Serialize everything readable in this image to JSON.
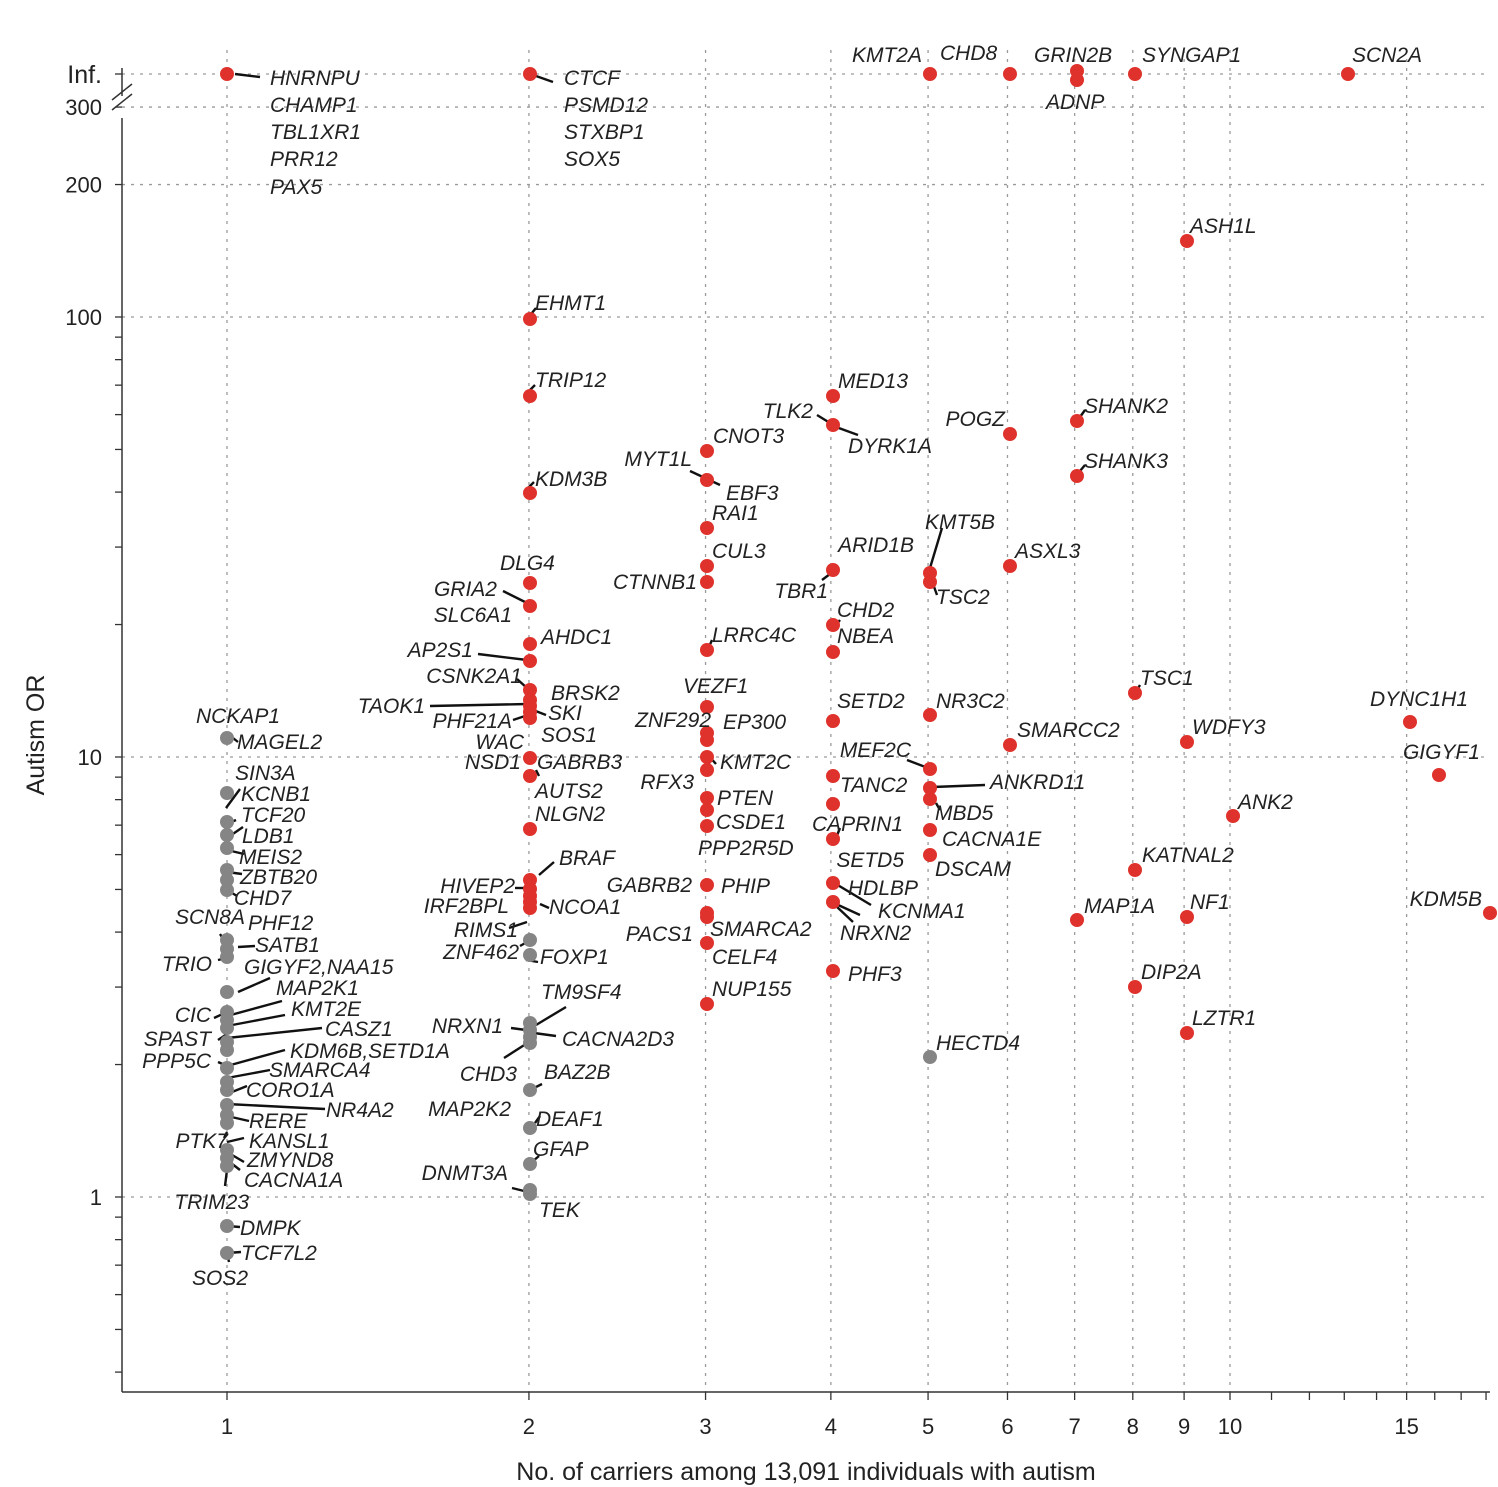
{
  "chart_data": {
    "type": "scatter",
    "title": "",
    "xlabel": "No. of carriers among 13,091 individuals with autism",
    "ylabel": "Autism OR",
    "x_scale": "log",
    "y_scale": "log",
    "xlim": [
      0.7,
      20
    ],
    "ylim": [
      0.4,
      "Inf."
    ],
    "x_ticks": [
      1,
      2,
      3,
      4,
      5,
      6,
      7,
      8,
      9,
      10,
      15
    ],
    "y_ticks": [
      1,
      10,
      100,
      200,
      300,
      "Inf."
    ],
    "colors": {
      "significant": "#e0322c",
      "not_significant": "#858585",
      "grid": "#9a9a9a"
    },
    "labels": [
      {
        "text": "HNRNPU",
        "carriers": 1,
        "or": "Inf."
      },
      {
        "text": "CHAMP1",
        "carriers": 1,
        "or": "Inf."
      },
      {
        "text": "TBL1XR1",
        "carriers": 1,
        "or": "Inf."
      },
      {
        "text": "PRR12",
        "carriers": 1,
        "or": "Inf."
      },
      {
        "text": "PAX5",
        "carriers": 1,
        "or": "Inf."
      },
      {
        "text": "CTCF",
        "carriers": 2,
        "or": "Inf."
      },
      {
        "text": "PSMD12",
        "carriers": 2,
        "or": "Inf."
      },
      {
        "text": "STXBP1",
        "carriers": 2,
        "or": "Inf."
      },
      {
        "text": "SOX5",
        "carriers": 2,
        "or": "Inf."
      },
      {
        "text": "KMT2A",
        "carriers": 5,
        "or": "Inf."
      },
      {
        "text": "CHD8",
        "carriers": 6,
        "or": "Inf."
      },
      {
        "text": "GRIN2B",
        "carriers": 7,
        "or": "Inf."
      },
      {
        "text": "ADNP",
        "carriers": 7,
        "or": "Inf."
      },
      {
        "text": "SYNGAP1",
        "carriers": 8,
        "or": "Inf."
      },
      {
        "text": "SCN2A",
        "carriers": 13,
        "or": "Inf."
      },
      {
        "text": "ASH1L",
        "carriers": 9,
        "or": 150
      },
      {
        "text": "EHMT1",
        "carriers": 2,
        "or": 100
      },
      {
        "text": "TRIP12",
        "carriers": 2,
        "or": 65
      },
      {
        "text": "KDM3B",
        "carriers": 2,
        "or": 40
      },
      {
        "text": "MED13",
        "carriers": 4,
        "or": 63
      },
      {
        "text": "TLK2",
        "carriers": 4,
        "or": 55
      },
      {
        "text": "DYRK1A",
        "carriers": 4,
        "or": 55
      },
      {
        "text": "CNOT3",
        "carriers": 3,
        "or": 48
      },
      {
        "text": "MYT1L",
        "carriers": 3,
        "or": 42
      },
      {
        "text": "EBF3",
        "carriers": 3,
        "or": 42
      },
      {
        "text": "RAI1",
        "carriers": 3,
        "or": 33
      },
      {
        "text": "POGZ",
        "carriers": 6,
        "or": 52
      },
      {
        "text": "SHANK2",
        "carriers": 7,
        "or": 56
      },
      {
        "text": "SHANK3",
        "carriers": 7,
        "or": 42
      },
      {
        "text": "KMT5B",
        "carriers": 5,
        "or": 24
      },
      {
        "text": "ASXL3",
        "carriers": 6,
        "or": 27
      },
      {
        "text": "ARID1B",
        "carriers": 4,
        "or": 26
      },
      {
        "text": "TSC2",
        "carriers": 5,
        "or": 24
      },
      {
        "text": "TBR1",
        "carriers": 4,
        "or": 26
      },
      {
        "text": "CUL3",
        "carriers": 3,
        "or": 27
      },
      {
        "text": "CTNNB1",
        "carriers": 3,
        "or": 24
      },
      {
        "text": "DLG4",
        "carriers": 2,
        "or": 24
      },
      {
        "text": "GRIA2",
        "carriers": 2,
        "or": 21
      },
      {
        "text": "SLC6A1",
        "carriers": 2,
        "or": 21
      },
      {
        "text": "AHDC1",
        "carriers": 2,
        "or": 18
      },
      {
        "text": "AP2S1",
        "carriers": 2,
        "or": 16.5
      },
      {
        "text": "CSNK2A1",
        "carriers": 2,
        "or": 14
      },
      {
        "text": "CHD2",
        "carriers": 4,
        "or": 19.5
      },
      {
        "text": "NBEA",
        "carriers": 4,
        "or": 17
      },
      {
        "text": "LRRC4C",
        "carriers": 3,
        "or": 17
      },
      {
        "text": "TSC1",
        "carriers": 8,
        "or": 14
      },
      {
        "text": "DYNC1H1",
        "carriers": 15,
        "or": 12
      },
      {
        "text": "WDFY3",
        "carriers": 9,
        "or": 10.8
      },
      {
        "text": "GIGYF1",
        "carriers": 16,
        "or": 9
      },
      {
        "text": "BRSK2",
        "carriers": 2,
        "or": 13.5
      },
      {
        "text": "TAOK1",
        "carriers": 2,
        "or": 12.8
      },
      {
        "text": "SKI",
        "carriers": 2,
        "or": 12.5
      },
      {
        "text": "PHF21A",
        "carriers": 2,
        "or": 12
      },
      {
        "text": "SOS1",
        "carriers": 2,
        "or": 12
      },
      {
        "text": "WAC",
        "carriers": 2,
        "or": 11.5
      },
      {
        "text": "NSD1",
        "carriers": 2,
        "or": 10
      },
      {
        "text": "GABRB3",
        "carriers": 2,
        "or": 10
      },
      {
        "text": "AUTS2",
        "carriers": 2,
        "or": 9
      },
      {
        "text": "NLGN2",
        "carriers": 2,
        "or": 7
      },
      {
        "text": "VEZF1",
        "carriers": 3,
        "or": 12.5
      },
      {
        "text": "ZNF292",
        "carriers": 3,
        "or": 11.2
      },
      {
        "text": "EP300",
        "carriers": 3,
        "or": 11
      },
      {
        "text": "KMT2C",
        "carriers": 3,
        "or": 9.5
      },
      {
        "text": "RFX3",
        "carriers": 3,
        "or": 9.3
      },
      {
        "text": "PTEN",
        "carriers": 3,
        "or": 7.9
      },
      {
        "text": "CSDE1",
        "carriers": 3,
        "or": 7.5
      },
      {
        "text": "PPP2R5D",
        "carriers": 3,
        "or": 7
      },
      {
        "text": "SETD2",
        "carriers": 4,
        "or": 12
      },
      {
        "text": "NR3C2",
        "carriers": 5,
        "or": 12.3
      },
      {
        "text": "SMARCC2",
        "carriers": 6,
        "or": 10.6
      },
      {
        "text": "MEF2C",
        "carriers": 5,
        "or": 9.5
      },
      {
        "text": "TANC2",
        "carriers": 4,
        "or": 9
      },
      {
        "text": "ANKRD11",
        "carriers": 5,
        "or": 8.5
      },
      {
        "text": "MBD5",
        "carriers": 5,
        "or": 8
      },
      {
        "text": "CAPRIN1",
        "carriers": 4,
        "or": 7.6
      },
      {
        "text": "CACNA1E",
        "carriers": 5,
        "or": 6.8
      },
      {
        "text": "DSCAM",
        "carriers": 5,
        "or": 5.9
      },
      {
        "text": "SETD5",
        "carriers": 4,
        "or": 6.6
      },
      {
        "text": "ANK2",
        "carriers": 10,
        "or": 7.3
      },
      {
        "text": "KATNAL2",
        "carriers": 8,
        "or": 5.4
      },
      {
        "text": "MAP1A",
        "carriers": 7,
        "or": 4.3
      },
      {
        "text": "NF1",
        "carriers": 9,
        "or": 4.4
      },
      {
        "text": "KDM5B",
        "carriers": 19,
        "or": 4.5
      },
      {
        "text": "DIP2A",
        "carriers": 8,
        "or": 3
      },
      {
        "text": "LZTR1",
        "carriers": 9,
        "or": 2.4
      },
      {
        "text": "HECTD4",
        "carriers": 5,
        "or": 2.1
      },
      {
        "text": "BRAF",
        "carriers": 2,
        "or": 5.2
      },
      {
        "text": "HIVEP2",
        "carriers": 2,
        "or": 5
      },
      {
        "text": "IRF2BPL",
        "carriers": 2,
        "or": 4.8
      },
      {
        "text": "NCOA1",
        "carriers": 2,
        "or": 4.6
      },
      {
        "text": "RIMS1",
        "carriers": 2,
        "or": 3.9
      },
      {
        "text": "ZNF462",
        "carriers": 2,
        "or": 3.9
      },
      {
        "text": "FOXP1",
        "carriers": 2,
        "or": 3.6
      },
      {
        "text": "GABRB2",
        "carriers": 3,
        "or": 5
      },
      {
        "text": "PHIP",
        "carriers": 3,
        "or": 5
      },
      {
        "text": "PACS1",
        "carriers": 3,
        "or": 4.3
      },
      {
        "text": "SMARCA2",
        "carriers": 3,
        "or": 4.3
      },
      {
        "text": "CELF4",
        "carriers": 3,
        "or": 3.8
      },
      {
        "text": "NUP155",
        "carriers": 3,
        "or": 2.8
      },
      {
        "text": "HDLBP",
        "carriers": 4,
        "or": 5.1
      },
      {
        "text": "KCNMA1",
        "carriers": 4,
        "or": 4.7
      },
      {
        "text": "NRXN2",
        "carriers": 4,
        "or": 4.7
      },
      {
        "text": "PHF3",
        "carriers": 4,
        "or": 3.3
      },
      {
        "text": "TM9SF4",
        "carriers": 2,
        "or": 2.5
      },
      {
        "text": "NRXN1",
        "carriers": 2,
        "or": 2.4
      },
      {
        "text": "CACNA2D3",
        "carriers": 2,
        "or": 2.3
      },
      {
        "text": "CHD3",
        "carriers": 2,
        "or": 2.2
      },
      {
        "text": "BAZ2B",
        "carriers": 2,
        "or": 1.7
      },
      {
        "text": "MAP2K2",
        "carriers": 2,
        "or": 1.7
      },
      {
        "text": "DEAF1",
        "carriers": 2,
        "or": 1.4
      },
      {
        "text": "GFAP",
        "carriers": 2,
        "or": 1.2
      },
      {
        "text": "DNMT3A",
        "carriers": 2,
        "or": 1.05
      },
      {
        "text": "TEK",
        "carriers": 2,
        "or": 1.0
      },
      {
        "text": "NCKAP1",
        "carriers": 1,
        "or": 11
      },
      {
        "text": "MAGEL2",
        "carriers": 1,
        "or": 11
      },
      {
        "text": "SIN3A",
        "carriers": 1,
        "or": 8.2
      },
      {
        "text": "KCNB1",
        "carriers": 1,
        "or": 8.2
      },
      {
        "text": "TCF20",
        "carriers": 1,
        "or": 7
      },
      {
        "text": "LDB1",
        "carriers": 1,
        "or": 6.6
      },
      {
        "text": "MEIS2",
        "carriers": 1,
        "or": 6.2
      },
      {
        "text": "ZBTB20",
        "carriers": 1,
        "or": 5.6
      },
      {
        "text": "CHD7",
        "carriers": 1,
        "or": 5
      },
      {
        "text": "SCN8A",
        "carriers": 1,
        "or": 3.9
      },
      {
        "text": "PHF12",
        "carriers": 1,
        "or": 3.9
      },
      {
        "text": "SATB1",
        "carriers": 1,
        "or": 3.7
      },
      {
        "text": "TRIO",
        "carriers": 1,
        "or": 3.6
      },
      {
        "text": "GIGYF2,NAA15",
        "carriers": 1,
        "or": 2.9
      },
      {
        "text": "MAP2K1",
        "carriers": 1,
        "or": 2.6
      },
      {
        "text": "KMT2E",
        "carriers": 1,
        "or": 2.5
      },
      {
        "text": "CIC",
        "carriers": 1,
        "or": 2.6
      },
      {
        "text": "CASZ1",
        "carriers": 1,
        "or": 2.3
      },
      {
        "text": "SPAST",
        "carriers": 1,
        "or": 2.2
      },
      {
        "text": "KDM6B,SETD1A",
        "carriers": 1,
        "or": 2.2
      },
      {
        "text": "PPP5C",
        "carriers": 1,
        "or": 2
      },
      {
        "text": "SMARCA4",
        "carriers": 1,
        "or": 1.9
      },
      {
        "text": "CORO1A",
        "carriers": 1,
        "or": 1.8
      },
      {
        "text": "NR4A2",
        "carriers": 1,
        "or": 1.6
      },
      {
        "text": "RERE",
        "carriers": 1,
        "or": 1.5
      },
      {
        "text": "PTK7",
        "carriers": 1,
        "or": 1.3
      },
      {
        "text": "KANSL1",
        "carriers": 1,
        "or": 1.3
      },
      {
        "text": "ZMYND8",
        "carriers": 1,
        "or": 1.2
      },
      {
        "text": "CACNA1A",
        "carriers": 1,
        "or": 1.15
      },
      {
        "text": "TRIM23",
        "carriers": 1,
        "or": 1.1
      },
      {
        "text": "DMPK",
        "carriers": 1,
        "or": 0.85
      },
      {
        "text": "TCF7L2",
        "carriers": 1,
        "or": 0.75
      },
      {
        "text": "SOS2",
        "carriers": 1,
        "or": 0.7
      }
    ]
  }
}
